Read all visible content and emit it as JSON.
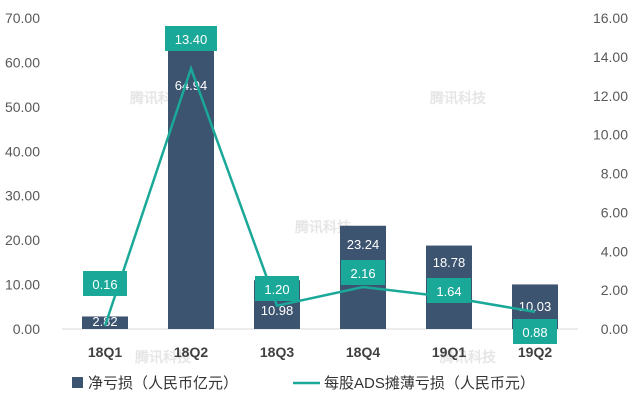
{
  "chart_data": {
    "type": "bar",
    "categories": [
      "18Q1",
      "18Q2",
      "18Q3",
      "18Q4",
      "19Q1",
      "19Q2"
    ],
    "series": [
      {
        "name": "净亏损（人民币亿元）",
        "type": "bar",
        "axis": "left",
        "values": [
          2.82,
          64.94,
          10.98,
          23.24,
          18.78,
          10.03
        ],
        "labels": [
          "2.82",
          "64.94",
          "10.98",
          "23.24",
          "18.78",
          "10.03"
        ],
        "color": "#3d5470"
      },
      {
        "name": "每股ADS摊薄亏损（人民币元）",
        "type": "line",
        "axis": "right",
        "values": [
          0.16,
          13.4,
          1.2,
          2.16,
          1.64,
          0.88
        ],
        "labels": [
          "0.16",
          "13.40",
          "1.20",
          "2.16",
          "1.64",
          "0.88"
        ],
        "color": "#1aa899"
      }
    ],
    "left_axis": {
      "ticks": [
        "0.00",
        "10.00",
        "20.00",
        "30.00",
        "40.00",
        "50.00",
        "60.00",
        "70.00"
      ],
      "ylim": [
        0,
        70
      ]
    },
    "right_axis": {
      "ticks": [
        "0.00",
        "2.00",
        "4.00",
        "6.00",
        "8.00",
        "10.00",
        "12.00",
        "14.00",
        "16.00"
      ],
      "ylim": [
        0,
        16
      ]
    },
    "grid": false,
    "legend_position": "bottom",
    "watermark": "腾讯科技"
  }
}
